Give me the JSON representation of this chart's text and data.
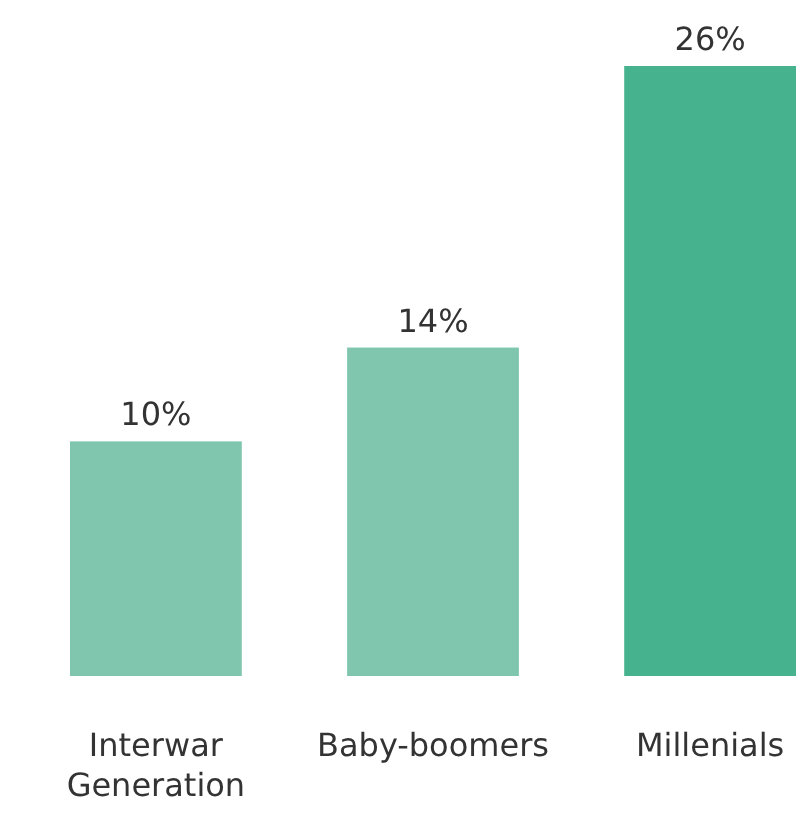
{
  "chart_data": {
    "type": "bar",
    "categories": [
      "Interwar Generation",
      "Baby-boomers",
      "Millenials"
    ],
    "values": [
      10,
      14,
      26
    ],
    "colors": [
      "#80c6ae",
      "#80c6ae",
      "#47b38e"
    ],
    "value_labels": [
      "10%",
      "14%",
      "26%"
    ],
    "tick_labels": "x"
  }
}
